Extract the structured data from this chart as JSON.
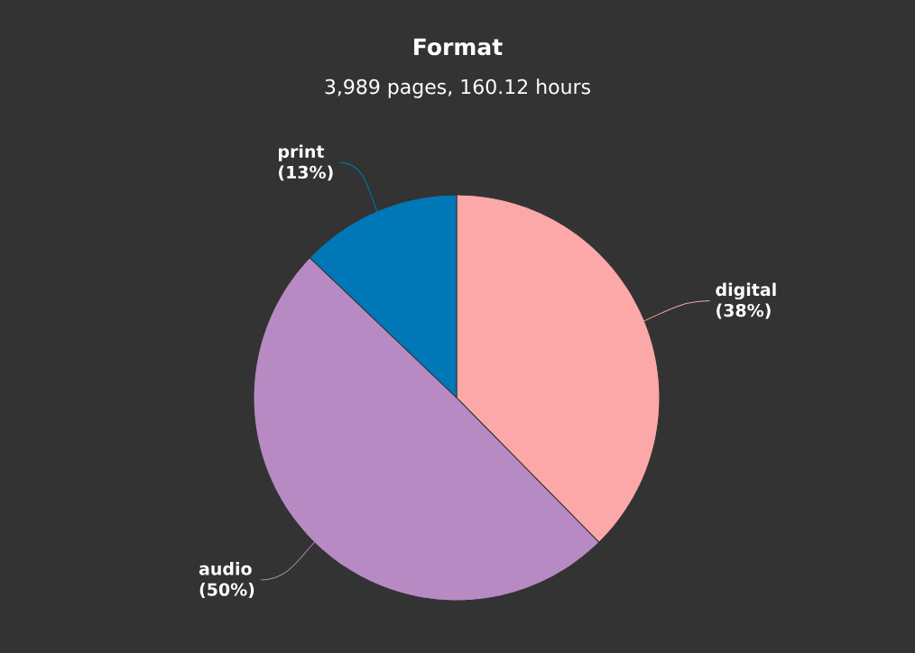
{
  "chart_data": {
    "type": "pie",
    "title": "Format",
    "subtitle": "3,989 pages, 160.12 hours",
    "categories": [
      "digital",
      "audio",
      "print"
    ],
    "values": [
      38,
      50,
      13
    ],
    "value_labels": [
      "(38%)",
      "(50%)",
      "(13%)"
    ],
    "colors": [
      "#fca8a8",
      "#b88ac3",
      "#0077b6"
    ]
  }
}
